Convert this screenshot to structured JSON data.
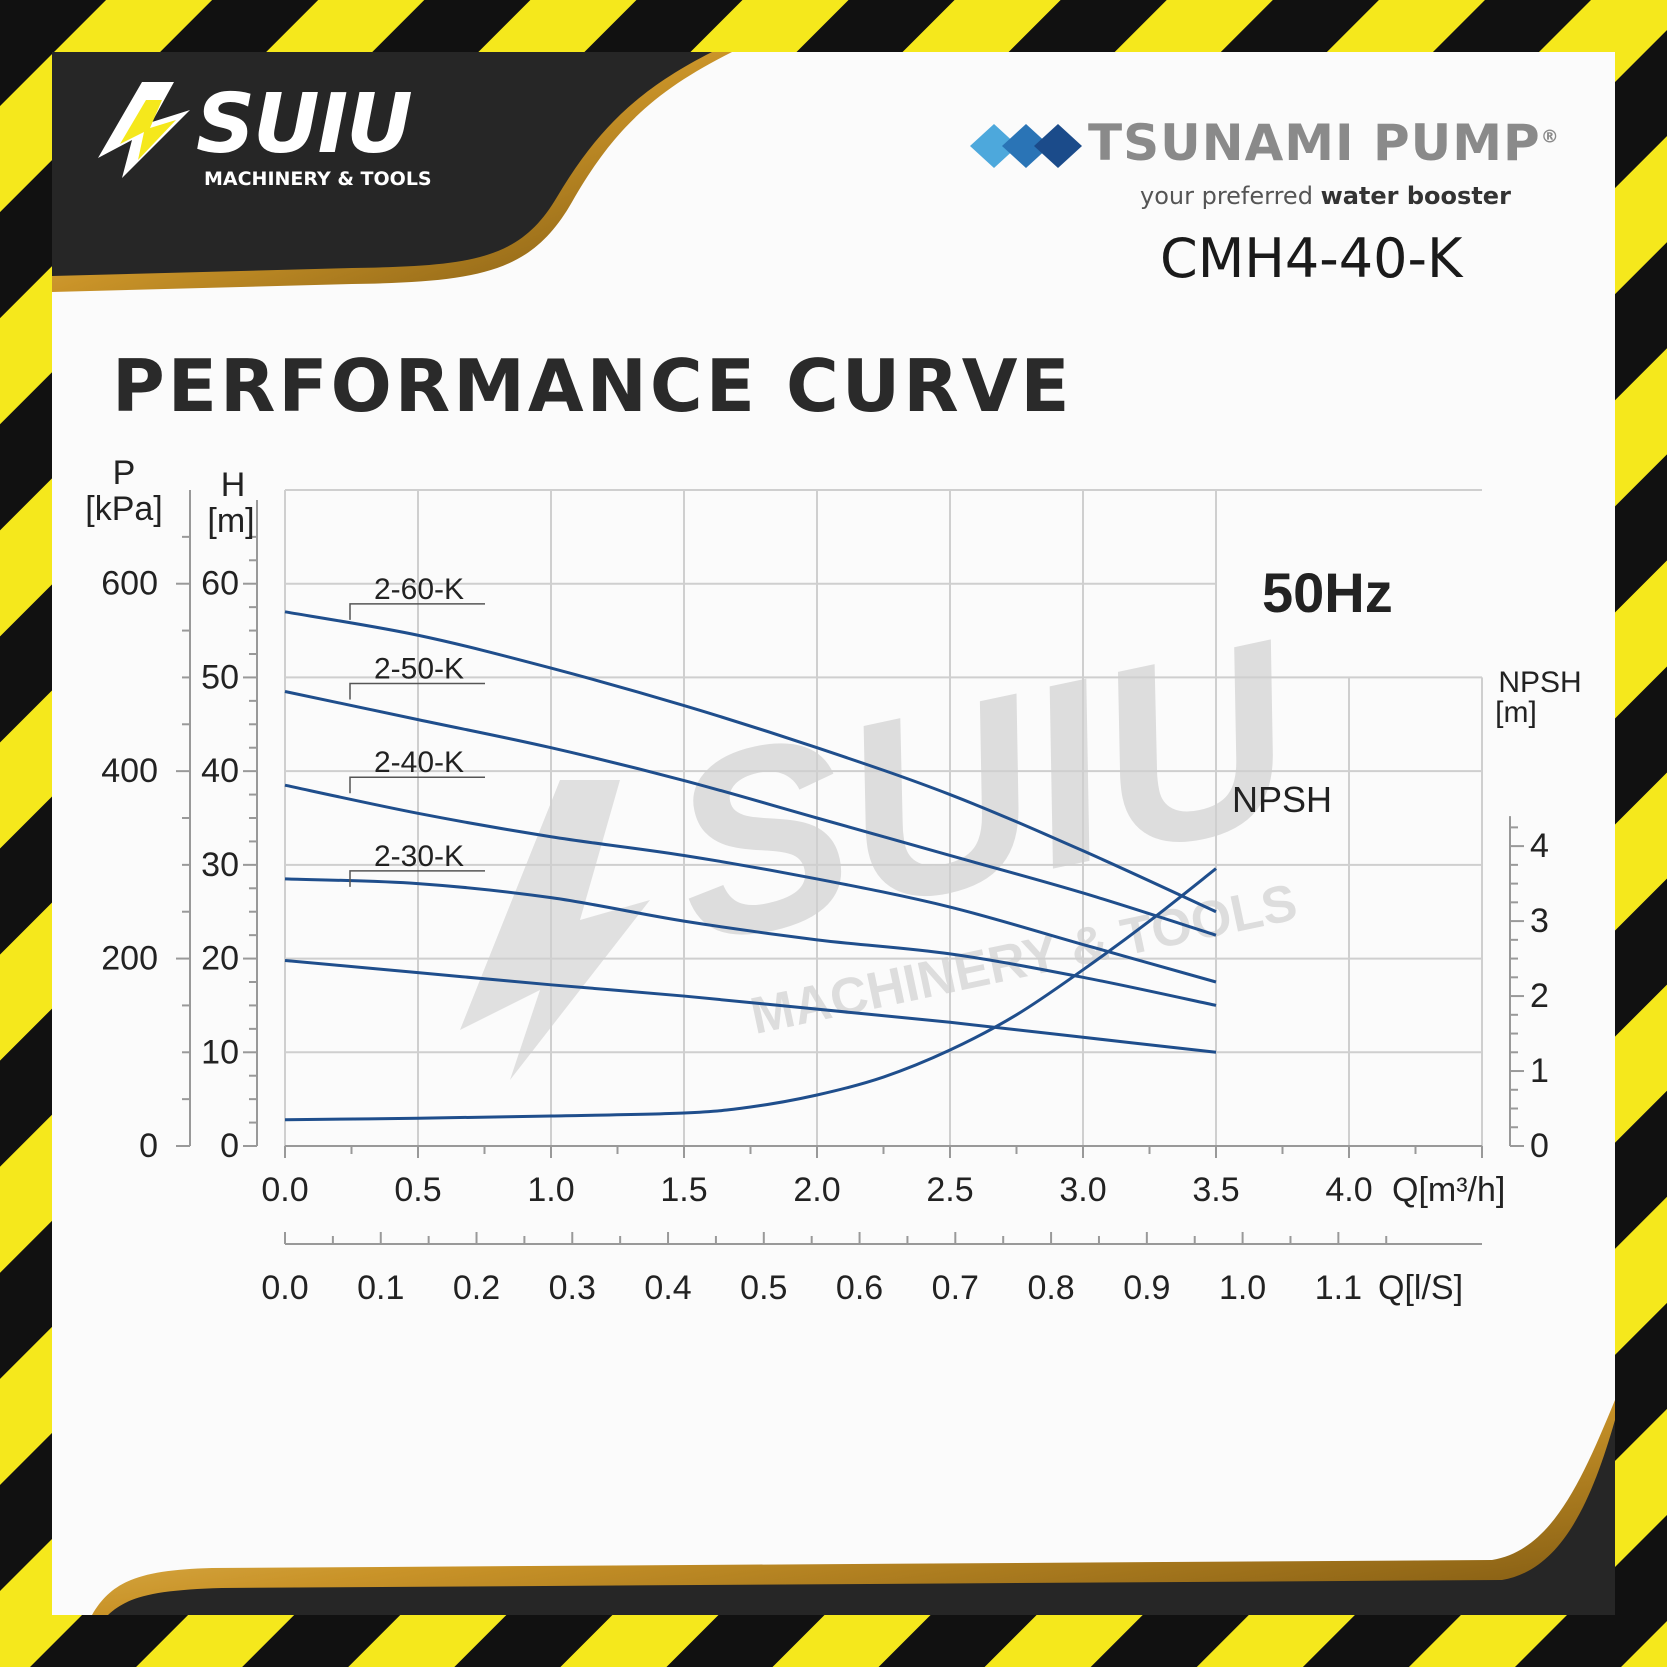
{
  "brand": {
    "logo_name": "SUIU",
    "logo_sub": "MACHINERY & TOOLS",
    "maker": "TSUNAMI PUMP",
    "registered": "®",
    "tagline_plain": "your preferred ",
    "tagline_bold": "water booster",
    "model": "CMH4-40-K"
  },
  "heading": "PERFORMANCE CURVE",
  "colors": {
    "curve": "#1f4e8c",
    "grid": "#cfcfcf",
    "stripe_yellow": "#f5e81c",
    "stripe_black": "#111111"
  },
  "chart_data": {
    "type": "line",
    "frequency": "50Hz",
    "x_axis_top": {
      "label": "Q[m³/h]",
      "range": [
        0,
        4.5
      ],
      "ticks": [
        "0.0",
        "0.5",
        "1.0",
        "1.5",
        "2.0",
        "2.5",
        "3.0",
        "3.5",
        "4.0"
      ]
    },
    "x_axis_bottom": {
      "label": "Q[l/S]",
      "range": [
        0,
        1.25
      ],
      "ticks": [
        "0.0",
        "0.1",
        "0.2",
        "0.3",
        "0.4",
        "0.5",
        "0.6",
        "0.7",
        "0.8",
        "0.9",
        "1.0",
        "1.1"
      ]
    },
    "y_axis_head": {
      "label_top": "H",
      "label_unit": "[m]",
      "range": [
        0,
        70
      ],
      "ticks": [
        "0",
        "10",
        "20",
        "30",
        "40",
        "50",
        "60"
      ]
    },
    "y_axis_pressure": {
      "label_top": "P",
      "label_unit": "[kPa]",
      "range": [
        0,
        700
      ],
      "ticks": [
        "0",
        "200",
        "400",
        "600"
      ]
    },
    "y_axis_npsh": {
      "label_top": "NPSH",
      "label_unit": "[m]",
      "range": [
        0,
        5
      ],
      "ticks": [
        "0",
        "1",
        "2",
        "3",
        "4"
      ]
    },
    "series": [
      {
        "name": "2-60-K",
        "axis": "head",
        "x": [
          0,
          0.5,
          1.0,
          1.5,
          2.0,
          2.5,
          3.0,
          3.5
        ],
        "y": [
          57,
          54.5,
          51,
          47,
          42.5,
          37.5,
          31.5,
          25
        ]
      },
      {
        "name": "2-50-K",
        "axis": "head",
        "x": [
          0,
          0.5,
          1.0,
          1.5,
          2.0,
          2.5,
          3.0,
          3.5
        ],
        "y": [
          48.5,
          45.5,
          42.5,
          39,
          35,
          31,
          27,
          22.5
        ]
      },
      {
        "name": "2-40-K",
        "axis": "head",
        "x": [
          0,
          0.5,
          1.0,
          1.5,
          2.0,
          2.5,
          3.0,
          3.5
        ],
        "y": [
          38.5,
          35.5,
          33,
          31,
          28.5,
          25.5,
          21.5,
          17.5
        ]
      },
      {
        "name": "2-30-K",
        "axis": "head",
        "x": [
          0,
          0.5,
          1.0,
          1.5,
          2.0,
          2.5,
          3.0,
          3.5
        ],
        "y": [
          28.5,
          28,
          26.5,
          24,
          22,
          20.5,
          18,
          15
        ]
      },
      {
        "name": "",
        "axis": "head",
        "x": [
          0,
          0.5,
          1.0,
          1.5,
          2.0,
          2.5,
          3.0,
          3.5
        ],
        "y": [
          19.8,
          18.5,
          17.2,
          16,
          14.6,
          13.2,
          11.6,
          10
        ]
      },
      {
        "name": "NPSH",
        "axis": "npsh",
        "x": [
          0,
          0.5,
          1.0,
          1.5,
          1.75,
          2.0,
          2.25,
          2.5,
          2.75,
          3.0,
          3.25,
          3.5
        ],
        "y": [
          0.35,
          0.37,
          0.4,
          0.44,
          0.52,
          0.68,
          0.92,
          1.28,
          1.75,
          2.35,
          3.0,
          3.7
        ]
      }
    ]
  }
}
